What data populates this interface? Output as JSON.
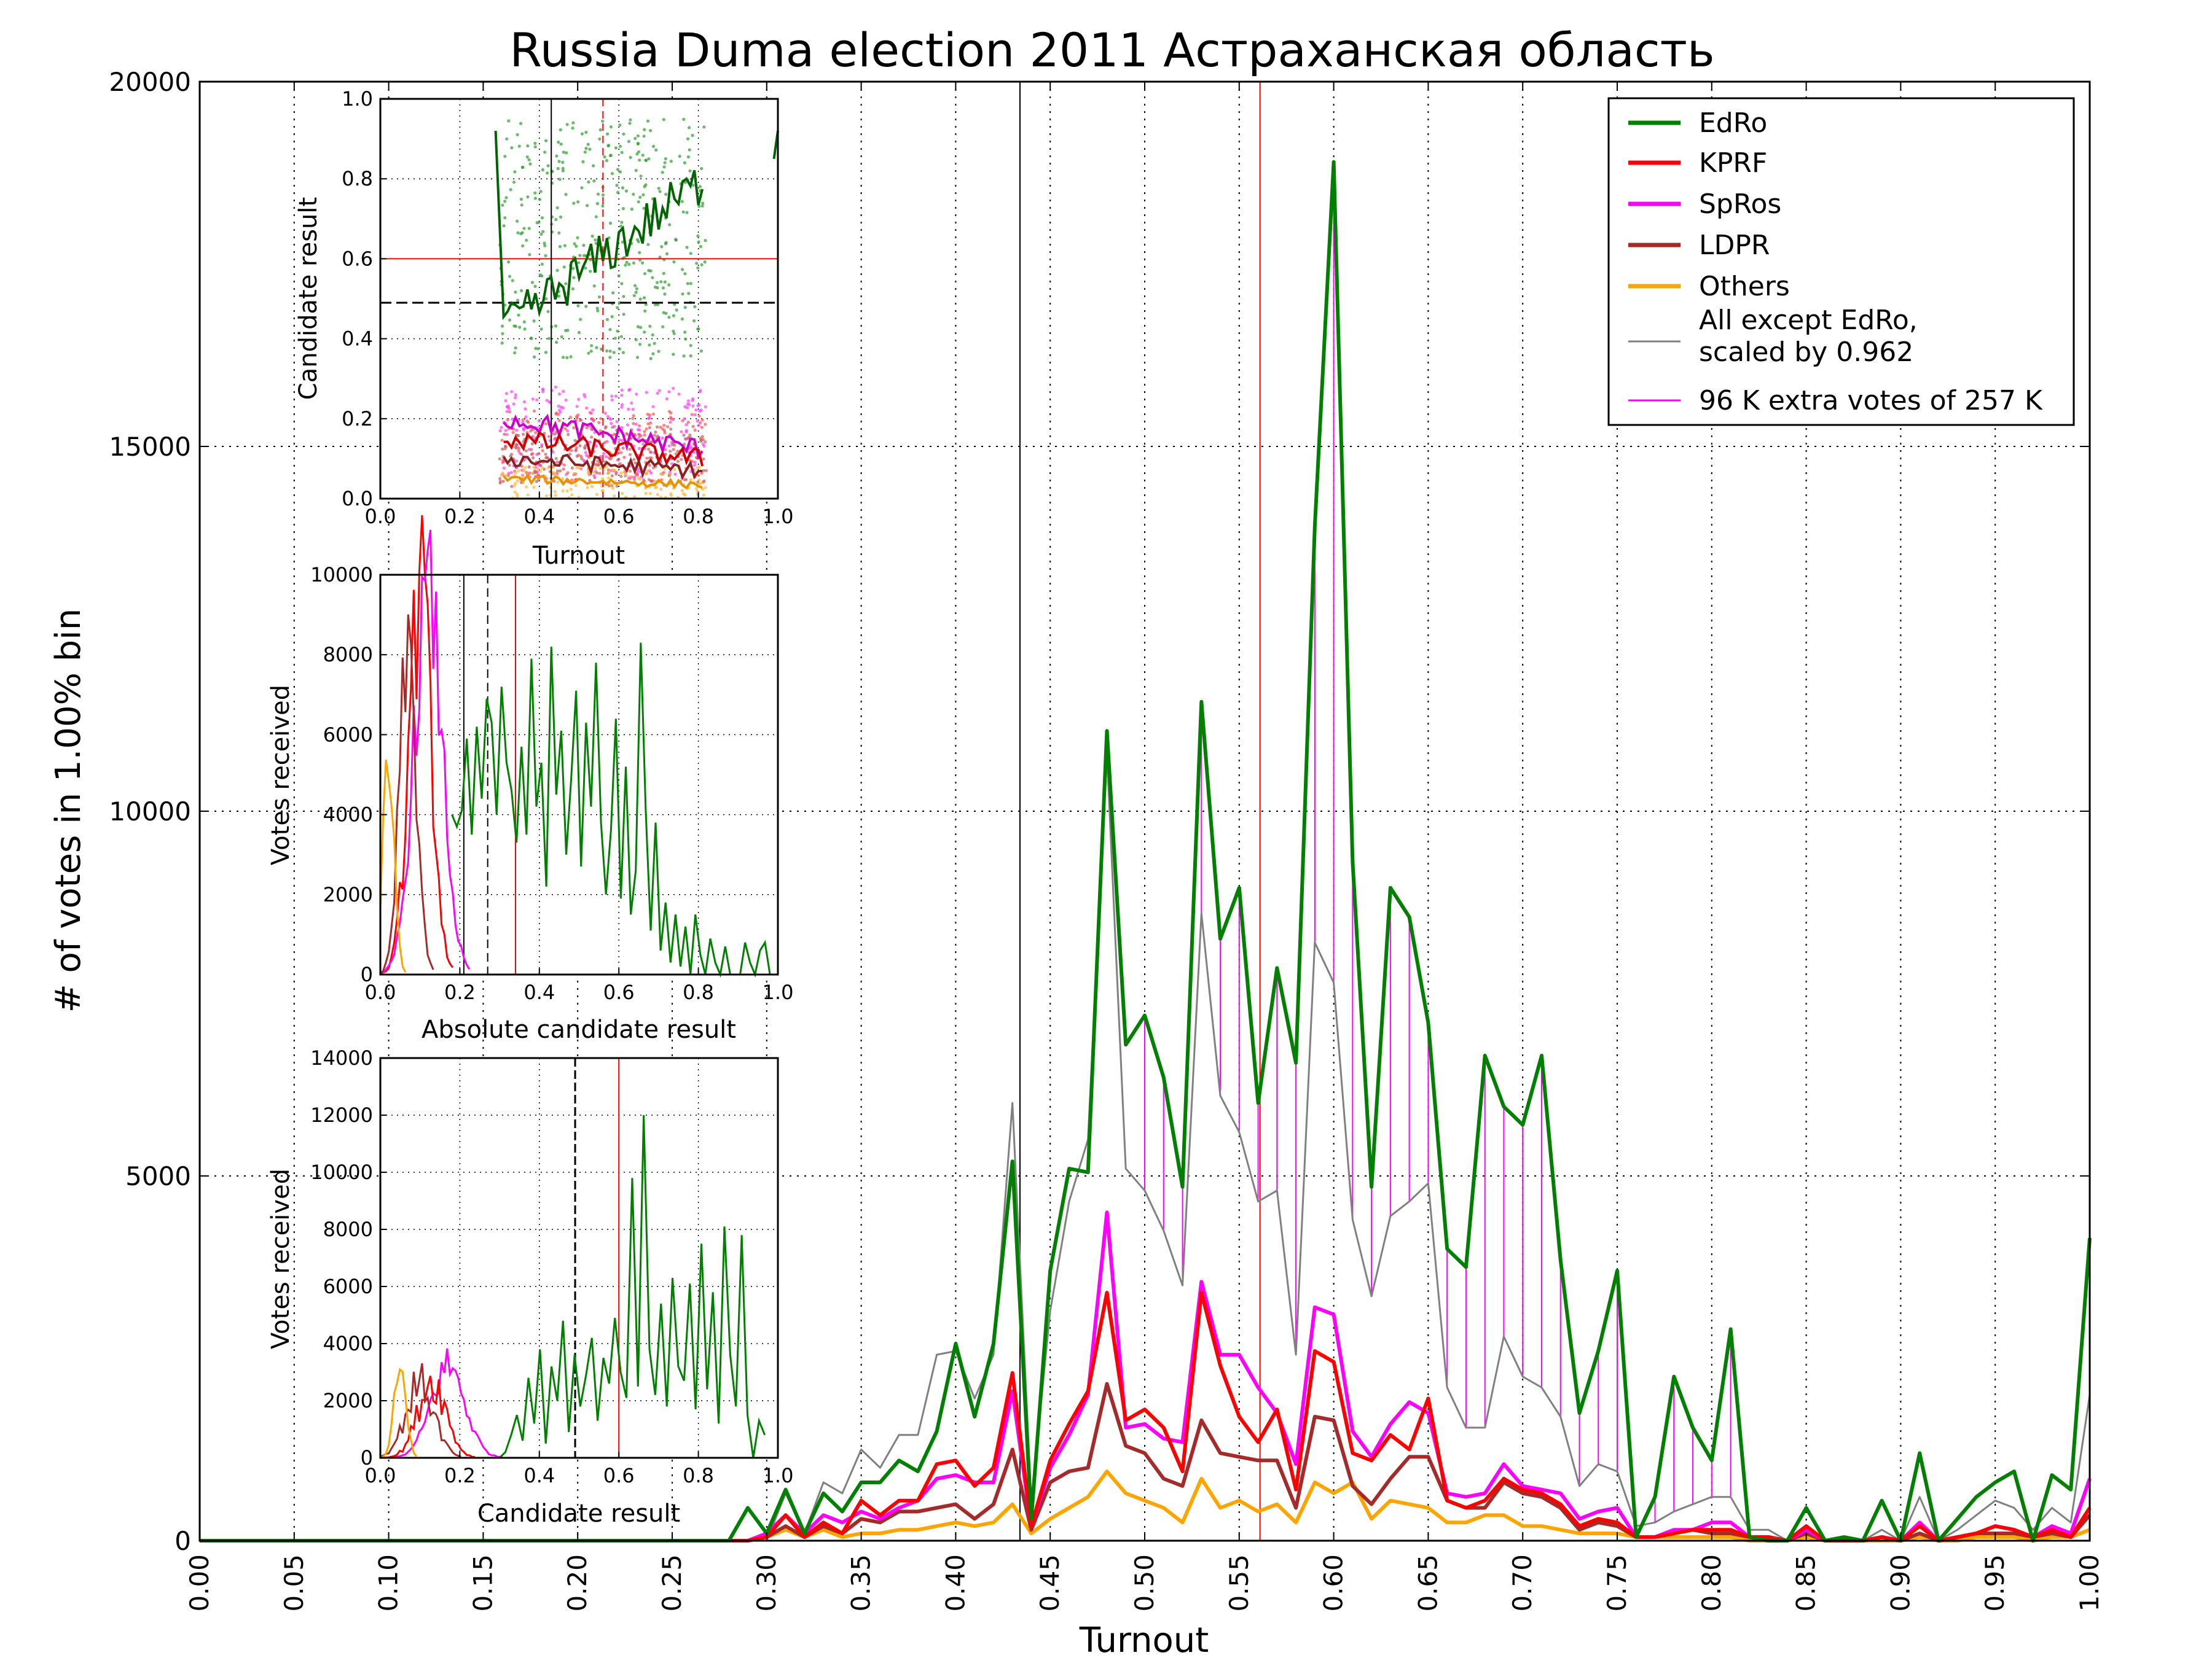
{
  "title": "Russia Duma election 2011 Астраханская область",
  "main": {
    "xlabel": "Turnout",
    "ylabel": "# of votes in 1.00% bin",
    "xlim": [
      0,
      1
    ],
    "ylim": [
      0,
      20000
    ],
    "xticks": [
      0,
      0.05,
      0.1,
      0.15,
      0.2,
      0.25,
      0.3,
      0.35,
      0.4,
      0.45,
      0.5,
      0.55,
      0.6,
      0.65,
      0.7,
      0.75,
      0.8,
      0.85,
      0.9,
      0.95,
      1.0
    ],
    "yticks": [
      0,
      5000,
      10000,
      15000,
      20000
    ],
    "vlines": [
      {
        "x": 0.434,
        "color": "#000000"
      },
      {
        "x": 0.561,
        "color": "#ff0000"
      }
    ]
  },
  "legend": {
    "position": "top-right",
    "items": [
      {
        "label": "EdRo",
        "color": "#007f00"
      },
      {
        "label": "KPRF",
        "color": "#ff0000"
      },
      {
        "label": "SpRos",
        "color": "#ff00ff"
      },
      {
        "label": "LDPR",
        "color": "#a52a2a"
      },
      {
        "label": "Others",
        "color": "#ffa500"
      },
      {
        "label": "All except EdRo,",
        "label2": "scaled by 0.962",
        "color": "#808080"
      },
      {
        "label": "96 K extra votes of 257 K",
        "color": "#ff00ff"
      }
    ]
  },
  "inset1": {
    "xlabel": "Turnout",
    "ylabel": "Candidate result",
    "xticks": [
      "0.0",
      "0.2",
      "0.4",
      "0.6",
      "0.8",
      "1.0"
    ],
    "yticks": [
      "0.0",
      "0.2",
      "0.4",
      "0.6",
      "0.8",
      "1.0"
    ]
  },
  "inset2": {
    "xlabel": "Absolute candidate result",
    "ylabel": "Votes received",
    "xticks": [
      "0.0",
      "0.2",
      "0.4",
      "0.6",
      "0.8",
      "1.0"
    ],
    "yticks": [
      "0",
      "2000",
      "4000",
      "6000",
      "8000",
      "10000"
    ]
  },
  "inset3": {
    "xlabel": "Candidate result",
    "ylabel": "Votes received",
    "xticks": [
      "0.0",
      "0.2",
      "0.4",
      "0.6",
      "0.8",
      "1.0"
    ],
    "yticks": [
      "0",
      "2000",
      "4000",
      "6000",
      "8000",
      "10000",
      "12000",
      "14000"
    ]
  },
  "chart_data": [
    {
      "type": "line",
      "title": "Russia Duma election 2011 Астраханская область",
      "xlabel": "Turnout",
      "ylabel": "# of votes in 1.00% bin",
      "xlim": [
        0,
        1
      ],
      "ylim": [
        0,
        20000
      ],
      "grid": true,
      "legend": "top-right",
      "x": [
        0.0,
        0.01,
        0.02,
        0.03,
        0.04,
        0.05,
        0.06,
        0.07,
        0.08,
        0.09,
        0.1,
        0.11,
        0.12,
        0.13,
        0.14,
        0.15,
        0.16,
        0.17,
        0.18,
        0.19,
        0.2,
        0.21,
        0.22,
        0.23,
        0.24,
        0.25,
        0.26,
        0.27,
        0.28,
        0.29,
        0.3,
        0.31,
        0.32,
        0.33,
        0.34,
        0.35,
        0.36,
        0.37,
        0.38,
        0.39,
        0.4,
        0.41,
        0.42,
        0.43,
        0.44,
        0.45,
        0.46,
        0.47,
        0.48,
        0.49,
        0.5,
        0.51,
        0.52,
        0.53,
        0.54,
        0.55,
        0.56,
        0.57,
        0.58,
        0.59,
        0.6,
        0.61,
        0.62,
        0.63,
        0.64,
        0.65,
        0.66,
        0.67,
        0.68,
        0.69,
        0.7,
        0.71,
        0.72,
        0.73,
        0.74,
        0.75,
        0.76,
        0.77,
        0.78,
        0.79,
        0.8,
        0.81,
        0.82,
        0.83,
        0.84,
        0.85,
        0.86,
        0.87,
        0.88,
        0.89,
        0.9,
        0.91,
        0.92,
        0.93,
        0.94,
        0.95,
        0.96,
        0.97,
        0.98,
        0.99,
        1.0
      ],
      "series": [
        {
          "name": "EdRo",
          "color": "#007f00",
          "width": 6,
          "values": [
            0,
            0,
            0,
            0,
            0,
            0,
            0,
            0,
            0,
            0,
            0,
            0,
            0,
            0,
            0,
            0,
            0,
            0,
            0,
            0,
            0,
            0,
            0,
            0,
            0,
            0,
            0,
            0,
            0,
            450,
            100,
            700,
            100,
            650,
            400,
            800,
            800,
            1100,
            950,
            1500,
            2700,
            1700,
            2700,
            5200,
            300,
            3700,
            5100,
            5050,
            11100,
            6800,
            7200,
            6350,
            4850,
            11500,
            8250,
            8950,
            6000,
            7850,
            6550,
            13900,
            18900,
            9300,
            4850,
            8950,
            8550,
            7100,
            4000,
            3750,
            6650,
            5950,
            5700,
            6650,
            3850,
            1750,
            2600,
            3700,
            50,
            600,
            2250,
            1550,
            1100,
            2900,
            50,
            0,
            0,
            450,
            0,
            50,
            0,
            550,
            0,
            1200,
            0,
            300,
            600,
            800,
            950,
            0,
            900,
            700,
            4150
          ]
        },
        {
          "name": "KPRF",
          "color": "#ff0000",
          "width": 6,
          "values": [
            0,
            0,
            0,
            0,
            0,
            0,
            0,
            0,
            0,
            0,
            0,
            0,
            0,
            0,
            0,
            0,
            0,
            0,
            0,
            0,
            0,
            0,
            0,
            0,
            0,
            0,
            0,
            0,
            0,
            0,
            50,
            350,
            50,
            250,
            100,
            550,
            350,
            550,
            550,
            1050,
            1100,
            750,
            1000,
            2300,
            200,
            1100,
            1600,
            2050,
            3400,
            1650,
            1800,
            1550,
            950,
            3400,
            2400,
            1700,
            1350,
            1800,
            700,
            2600,
            2450,
            1200,
            1100,
            1450,
            1250,
            1950,
            550,
            450,
            550,
            850,
            700,
            650,
            500,
            200,
            300,
            250,
            50,
            50,
            100,
            150,
            150,
            150,
            50,
            50,
            0,
            200,
            0,
            0,
            0,
            50,
            0,
            200,
            0,
            50,
            100,
            200,
            150,
            50,
            150,
            50,
            450
          ]
        },
        {
          "name": "SpRos",
          "color": "#ff00ff",
          "width": 6,
          "values": [
            0,
            0,
            0,
            0,
            0,
            0,
            0,
            0,
            0,
            0,
            0,
            0,
            0,
            0,
            0,
            0,
            0,
            0,
            0,
            0,
            0,
            0,
            0,
            0,
            0,
            0,
            0,
            0,
            0,
            0,
            100,
            350,
            100,
            350,
            250,
            400,
            300,
            450,
            550,
            850,
            900,
            800,
            800,
            2050,
            200,
            1000,
            1450,
            2000,
            4500,
            1550,
            1600,
            1400,
            1350,
            3550,
            2550,
            2550,
            2100,
            1750,
            1050,
            3200,
            3100,
            1500,
            1150,
            1600,
            1900,
            1750,
            650,
            600,
            650,
            1050,
            750,
            700,
            650,
            300,
            400,
            450,
            50,
            50,
            150,
            150,
            250,
            250,
            50,
            50,
            0,
            150,
            0,
            0,
            0,
            50,
            0,
            250,
            0,
            50,
            100,
            200,
            150,
            50,
            200,
            100,
            850
          ]
        },
        {
          "name": "LDPR",
          "color": "#a52a2a",
          "width": 6,
          "values": [
            0,
            0,
            0,
            0,
            0,
            0,
            0,
            0,
            0,
            0,
            0,
            0,
            0,
            0,
            0,
            0,
            0,
            0,
            0,
            0,
            0,
            0,
            0,
            0,
            0,
            0,
            0,
            0,
            0,
            0,
            50,
            200,
            50,
            200,
            100,
            300,
            250,
            400,
            400,
            450,
            500,
            300,
            500,
            1250,
            150,
            800,
            950,
            1000,
            2150,
            1300,
            1200,
            850,
            750,
            1650,
            1200,
            1150,
            1100,
            1100,
            450,
            1700,
            1650,
            750,
            500,
            850,
            1150,
            1150,
            550,
            450,
            450,
            800,
            650,
            600,
            450,
            150,
            250,
            200,
            50,
            50,
            100,
            150,
            100,
            100,
            50,
            50,
            0,
            100,
            0,
            0,
            0,
            50,
            0,
            100,
            0,
            50,
            100,
            100,
            100,
            50,
            100,
            50,
            350
          ]
        },
        {
          "name": "Others",
          "color": "#ffa500",
          "width": 6,
          "values": [
            0,
            0,
            0,
            0,
            0,
            0,
            0,
            0,
            0,
            0,
            0,
            0,
            0,
            0,
            0,
            0,
            0,
            0,
            0,
            0,
            0,
            0,
            0,
            0,
            0,
            0,
            0,
            0,
            0,
            0,
            50,
            150,
            50,
            150,
            50,
            100,
            100,
            150,
            150,
            200,
            250,
            200,
            250,
            500,
            100,
            300,
            450,
            600,
            950,
            650,
            550,
            450,
            250,
            850,
            450,
            550,
            400,
            500,
            250,
            800,
            650,
            800,
            300,
            550,
            500,
            450,
            250,
            250,
            350,
            350,
            200,
            200,
            150,
            100,
            100,
            100,
            50,
            50,
            50,
            50,
            50,
            50,
            0,
            0,
            0,
            50,
            0,
            0,
            0,
            0,
            0,
            50,
            0,
            0,
            50,
            50,
            50,
            0,
            50,
            50,
            150
          ]
        },
        {
          "name": "All except EdRo, scaled by 0.962",
          "color": "#808080",
          "width": 3,
          "values": [
            0,
            0,
            0,
            0,
            0,
            0,
            0,
            0,
            0,
            0,
            0,
            0,
            0,
            0,
            0,
            0,
            0,
            0,
            0,
            0,
            0,
            0,
            0,
            0,
            0,
            0,
            0,
            0,
            0,
            0,
            0,
            650,
            100,
            800,
            650,
            1250,
            1000,
            1450,
            1450,
            2550,
            2600,
            1950,
            2550,
            6000,
            550,
            3150,
            4650,
            5500,
            10800,
            5100,
            4800,
            4250,
            3500,
            8600,
            6100,
            5600,
            4650,
            4800,
            2550,
            8200,
            7650,
            4400,
            3350,
            4450,
            4650,
            4900,
            2100,
            1550,
            1550,
            2800,
            2250,
            2100,
            1700,
            750,
            1050,
            950,
            200,
            250,
            400,
            500,
            600,
            600,
            150,
            150,
            0,
            450,
            0,
            0,
            0,
            150,
            0,
            600,
            0,
            150,
            350,
            550,
            450,
            150,
            450,
            250,
            2000
          ]
        }
      ]
    }
  ]
}
